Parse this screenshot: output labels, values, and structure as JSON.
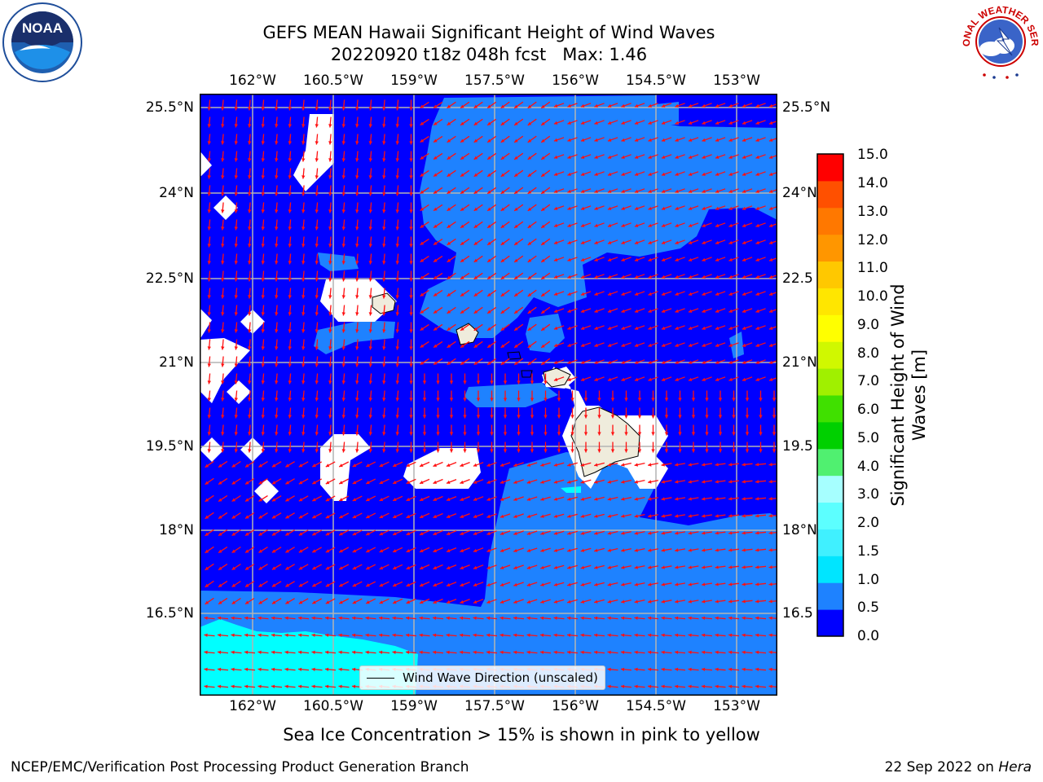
{
  "title": {
    "line1": "GEFS MEAN Hawaii Significant Height of Wind Waves",
    "line2": "20220920 t18z 048h fcst   Max: 1.46"
  },
  "axes": {
    "lon_ticks": [
      "162°W",
      "160.5°W",
      "159°W",
      "157.5°W",
      "156°W",
      "154.5°W",
      "153°W"
    ],
    "lat_ticks": [
      "25.5°N",
      "24°N",
      "22.5°N",
      "21°N",
      "19.5°N",
      "18°N",
      "16.5°N"
    ],
    "lat_ticks_right": [
      "25.5°N",
      "24°N",
      "22.5",
      "21°N",
      "19.5",
      "18°N",
      "16.5"
    ]
  },
  "colorbar": {
    "label": "Significant Height of Wind Waves [m]",
    "ticks": [
      "15.0",
      "14.0",
      "13.0",
      "12.0",
      "11.0",
      "10.0",
      "9.0",
      "8.0",
      "7.0",
      "6.0",
      "5.0",
      "4.0",
      "3.0",
      "2.0",
      "1.5",
      "1.0",
      "0.5",
      "0.0"
    ],
    "colors": [
      "#0000ff",
      "#1e82ff",
      "#00e5ff",
      "#40f0ff",
      "#5cffff",
      "#a6ffff",
      "#50f070",
      "#00d000",
      "#40e000",
      "#a0f000",
      "#d0f800",
      "#ffff00",
      "#ffe600",
      "#ffc800",
      "#ff9600",
      "#ff7800",
      "#ff5000",
      "#ff0000"
    ]
  },
  "legend": {
    "label": "Wind Wave Direction (unscaled)"
  },
  "note": "Sea Ice Concentration > 15% is shown in pink to yellow",
  "footer": {
    "left": "NCEP/EMC/Verification Post Processing Product Generation Branch",
    "date": "22 Sep 2022 on ",
    "host": "Hera"
  },
  "logos": {
    "left": "NOAA",
    "right": "NATIONAL WEATHER SERVICE"
  }
}
